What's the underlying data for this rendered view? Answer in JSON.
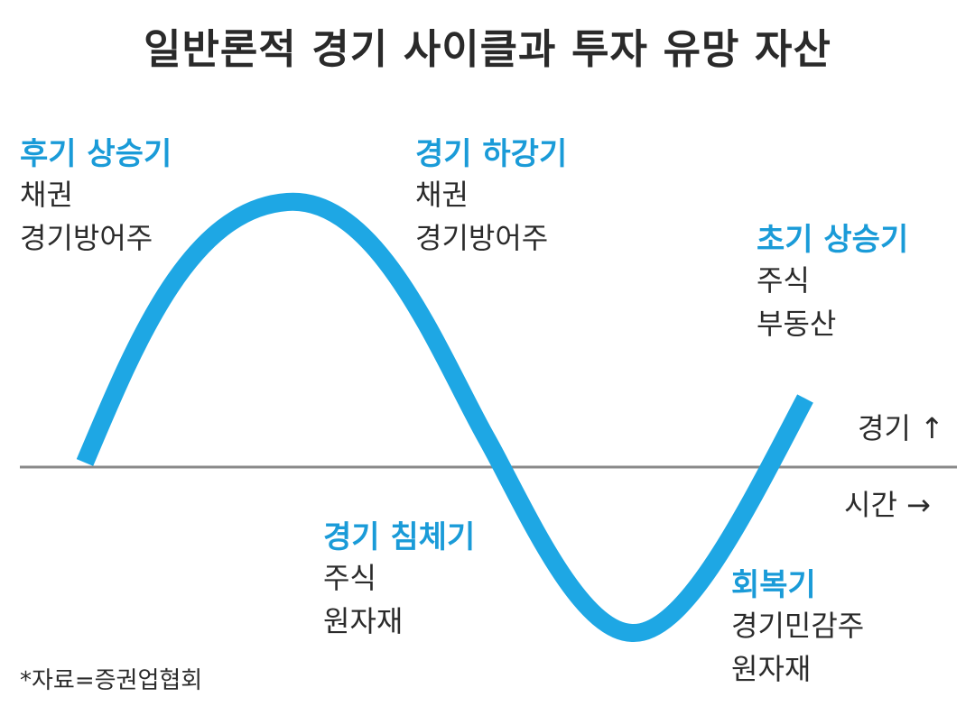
{
  "title": "일반론적 경기 사이클과 투자 유망 자산",
  "colors": {
    "curve": "#1ea7e4",
    "phase_title": "#1a9bd8",
    "axis": "#8a8a8a",
    "text": "#2b2b2b"
  },
  "phases": {
    "late_expansion": {
      "title": "후기 상승기",
      "assets": [
        "채권",
        "경기방어주"
      ]
    },
    "downturn": {
      "title": "경기 하강기",
      "assets": [
        "채권",
        "경기방어주"
      ]
    },
    "early_expansion": {
      "title": "초기 상승기",
      "assets": [
        "주식",
        "부동산"
      ]
    },
    "recession": {
      "title": "경기 침체기",
      "assets": [
        "주식",
        "원자재"
      ]
    },
    "recovery": {
      "title": "회복기",
      "assets": [
        "경기민감주",
        "원자재"
      ]
    }
  },
  "axis": {
    "y_label": "경기 ↑",
    "x_label": "시간 →"
  },
  "source": "*자료=증권업협회"
}
